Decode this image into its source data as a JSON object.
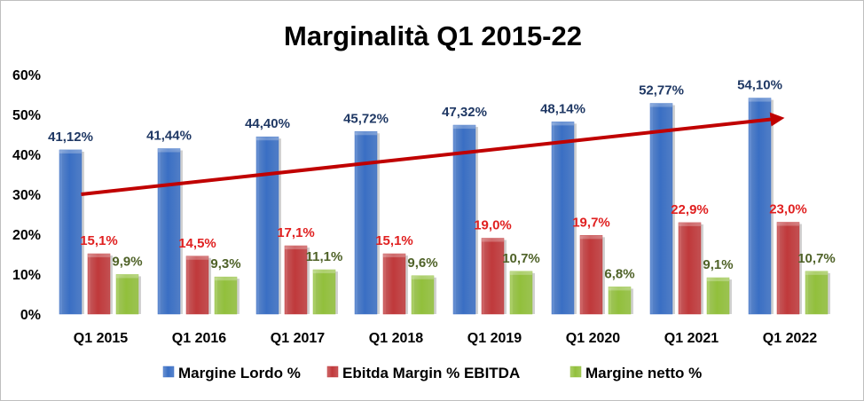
{
  "chart_data": {
    "type": "bar",
    "title": "Marginalità Q1 2015-22",
    "categories": [
      "Q1 2015",
      "Q1 2016",
      "Q1 2017",
      "Q1 2018",
      "Q1 2019",
      "Q1 2020",
      "Q1 2021",
      "Q1 2022"
    ],
    "series": [
      {
        "name": "Margine Lordo %",
        "values": [
          41.12,
          41.44,
          44.4,
          45.72,
          47.32,
          48.14,
          52.77,
          54.1
        ],
        "labels": [
          "41,12%",
          "41,44%",
          "44,40%",
          "45,72%",
          "47,32%",
          "48,14%",
          "52,77%",
          "54,10%"
        ],
        "color": "#3a6fc4",
        "label_color": "#1f3864"
      },
      {
        "name": "Ebitda Margin % EBITDA",
        "values": [
          15.1,
          14.5,
          17.1,
          15.1,
          19.0,
          19.7,
          22.9,
          23.0
        ],
        "labels": [
          "15,1%",
          "14,5%",
          "17,1%",
          "15,1%",
          "19,0%",
          "19,7%",
          "22,9%",
          "23,0%"
        ],
        "color": "#c0393b",
        "label_color": "#e02020"
      },
      {
        "name": "Margine netto %",
        "values": [
          9.9,
          9.3,
          11.1,
          9.6,
          10.7,
          6.8,
          9.1,
          10.7
        ],
        "labels": [
          "9,9%",
          "9,3%",
          "11,1%",
          "9,6%",
          "10,7%",
          "6,8%",
          "9,1%",
          "10,7%"
        ],
        "color": "#92c03c",
        "label_color": "#4f6228"
      }
    ],
    "ylim": [
      0,
      60
    ],
    "yticks": [
      "0%",
      "10%",
      "20%",
      "30%",
      "40%",
      "50%",
      "60%"
    ],
    "trend_arrow": {
      "from_value": 30,
      "to_value": 49,
      "color": "#c00000"
    },
    "legend_position": "bottom",
    "grid": false
  }
}
